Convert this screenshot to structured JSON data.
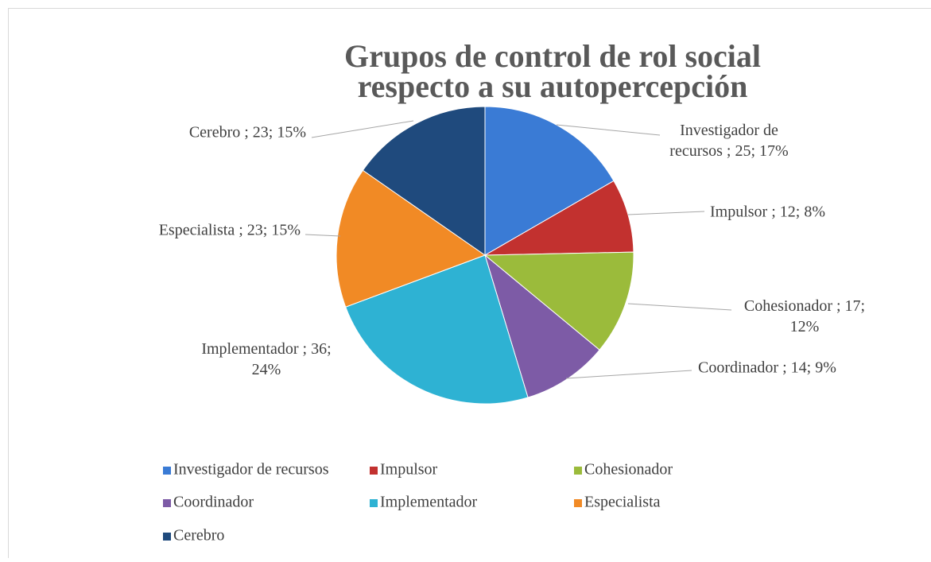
{
  "chart_data": {
    "type": "pie",
    "title": "Grupos de control de rol social respecto a su autopercepción",
    "categories": [
      "Investigador de recursos",
      "Impulsor",
      "Cohesionador",
      "Coordinador",
      "Implementador",
      "Especialista",
      "Cerebro"
    ],
    "values": [
      25,
      12,
      17,
      14,
      36,
      23,
      23
    ],
    "value_labels": [
      "Investigador de recursos ; 25; 17%",
      "Impulsor ; 12; 8%",
      "Cohesionador ; 17; 12%",
      "Coordinador ; 14; 9%",
      "Implementador ; 36; 24%",
      "Especialista ; 23; 15%",
      "Cerebro ; 23; 15%"
    ],
    "colors": [
      "#3a7bd5",
      "#c2312f",
      "#9bbb3b",
      "#7d5ba6",
      "#2eb2d3",
      "#f18a25",
      "#1f4a7d"
    ],
    "legend": "bottom"
  }
}
